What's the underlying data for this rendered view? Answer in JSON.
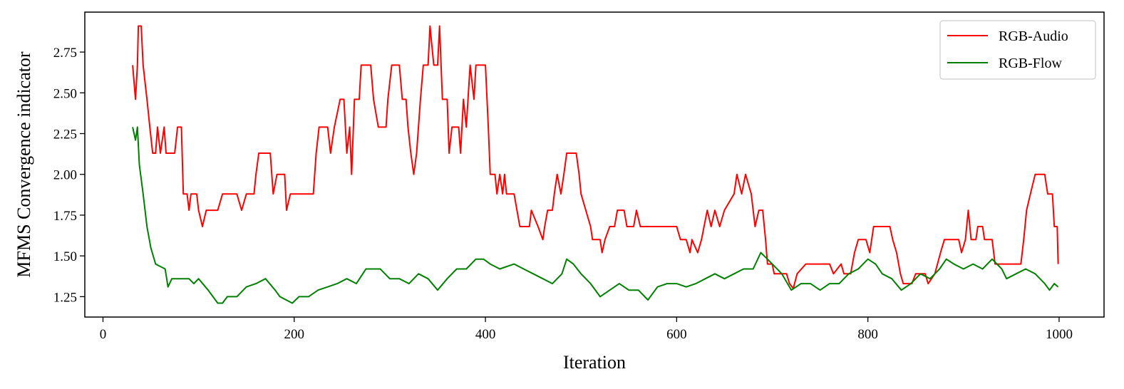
{
  "chart_data": {
    "type": "line",
    "x_label": "Iteration",
    "y_label": "MFMS Convergence indicator",
    "xlim": [
      -19,
      1047
    ],
    "ylim": [
      1.125,
      2.995
    ],
    "xticks": [
      0,
      200,
      400,
      600,
      800,
      1000
    ],
    "yticks": [
      1.25,
      {
        "value": 1.5,
        "label": "1.50"
      },
      1.75,
      {
        "value": 2.0,
        "label": "2.00"
      },
      2.25,
      {
        "value": 2.5,
        "label": "2.50"
      },
      2.75
    ],
    "legend": "upper right",
    "grid": false,
    "series": [
      {
        "name": "RGB-Audio",
        "color": "#ff0000",
        "x": [
          31,
          34,
          36,
          37,
          40,
          42,
          46,
          49,
          52,
          55,
          57,
          60,
          64,
          66,
          70,
          75,
          78,
          82,
          84,
          88,
          90,
          92,
          98,
          100,
          104,
          108,
          120,
          125,
          140,
          145,
          150,
          158,
          160,
          163,
          175,
          178,
          182,
          190,
          192,
          196,
          220,
          223,
          226,
          235,
          238,
          242,
          248,
          252,
          255,
          258,
          260,
          263,
          268,
          270,
          280,
          283,
          288,
          296,
          298,
          302,
          310,
          313,
          317,
          319,
          322,
          325,
          328,
          332,
          335,
          340,
          342,
          346,
          350,
          352,
          355,
          360,
          362,
          365,
          372,
          374,
          377,
          380,
          384,
          388,
          390,
          400,
          403,
          405,
          410,
          412,
          415,
          418,
          420,
          422,
          430,
          433,
          436,
          446,
          448,
          455,
          460,
          462,
          465,
          470,
          472,
          475,
          479,
          482,
          485,
          495,
          498,
          500,
          505,
          510,
          512,
          520,
          522,
          525,
          530,
          535,
          538,
          545,
          548,
          555,
          558,
          562,
          600,
          604,
          610,
          614,
          616,
          622,
          626,
          632,
          636,
          640,
          645,
          650,
          660,
          663,
          668,
          672,
          678,
          682,
          686,
          690,
          693,
          695,
          700,
          702,
          715,
          718,
          722,
          726,
          735,
          760,
          764,
          772,
          775,
          782,
          786,
          790,
          798,
          802,
          806,
          823,
          826,
          830,
          834,
          837,
          846,
          850,
          860,
          863,
          870,
          876,
          880,
          895,
          898,
          902,
          905,
          908,
          913,
          915,
          920,
          922,
          930,
          933,
          960,
          963,
          966,
          970,
          975,
          985,
          988,
          993,
          995,
          998,
          999
        ],
        "values": [
          2.67,
          2.46,
          2.67,
          2.91,
          2.91,
          2.67,
          2.46,
          2.29,
          2.13,
          2.13,
          2.29,
          2.13,
          2.29,
          2.13,
          2.13,
          2.13,
          2.29,
          2.29,
          1.88,
          1.88,
          1.78,
          1.88,
          1.88,
          1.78,
          1.68,
          1.78,
          1.78,
          1.88,
          1.88,
          1.78,
          1.88,
          1.88,
          2.0,
          2.13,
          2.13,
          1.88,
          2.0,
          2.0,
          1.78,
          1.88,
          1.88,
          2.13,
          2.29,
          2.29,
          2.13,
          2.29,
          2.46,
          2.46,
          2.13,
          2.29,
          2.0,
          2.46,
          2.46,
          2.67,
          2.67,
          2.46,
          2.29,
          2.29,
          2.46,
          2.67,
          2.67,
          2.46,
          2.46,
          2.29,
          2.13,
          2.0,
          2.13,
          2.46,
          2.67,
          2.67,
          2.91,
          2.67,
          2.67,
          2.91,
          2.46,
          2.46,
          2.13,
          2.29,
          2.29,
          2.13,
          2.46,
          2.29,
          2.67,
          2.46,
          2.67,
          2.67,
          2.29,
          2.0,
          2.0,
          1.88,
          2.0,
          1.88,
          2.0,
          1.88,
          1.88,
          1.78,
          1.68,
          1.68,
          1.78,
          1.68,
          1.6,
          1.68,
          1.78,
          1.78,
          1.88,
          2.0,
          1.88,
          2.0,
          2.13,
          2.13,
          2.0,
          1.88,
          1.78,
          1.68,
          1.6,
          1.6,
          1.52,
          1.6,
          1.68,
          1.68,
          1.78,
          1.78,
          1.68,
          1.68,
          1.78,
          1.68,
          1.68,
          1.6,
          1.6,
          1.52,
          1.6,
          1.52,
          1.6,
          1.78,
          1.68,
          1.78,
          1.68,
          1.78,
          1.88,
          2.0,
          1.88,
          2.0,
          1.88,
          1.68,
          1.78,
          1.78,
          1.6,
          1.45,
          1.45,
          1.39,
          1.39,
          1.33,
          1.3,
          1.39,
          1.45,
          1.45,
          1.39,
          1.45,
          1.39,
          1.39,
          1.52,
          1.6,
          1.6,
          1.52,
          1.68,
          1.68,
          1.6,
          1.52,
          1.39,
          1.33,
          1.33,
          1.39,
          1.39,
          1.33,
          1.39,
          1.52,
          1.6,
          1.6,
          1.52,
          1.6,
          1.78,
          1.6,
          1.6,
          1.68,
          1.68,
          1.6,
          1.6,
          1.45,
          1.45,
          1.6,
          1.78,
          1.88,
          2.0,
          2.0,
          1.88,
          1.88,
          1.68,
          1.68,
          1.45
        ]
      },
      {
        "name": "RGB-Flow",
        "color": "#008000",
        "x": [
          31,
          34,
          36,
          38,
          42,
          46,
          50,
          55,
          65,
          68,
          72,
          80,
          90,
          95,
          100,
          110,
          115,
          120,
          125,
          130,
          140,
          150,
          160,
          170,
          180,
          185,
          198,
          205,
          215,
          225,
          235,
          245,
          255,
          265,
          275,
          290,
          300,
          310,
          320,
          330,
          340,
          350,
          360,
          370,
          380,
          390,
          398,
          405,
          415,
          430,
          440,
          450,
          460,
          470,
          480,
          485,
          492,
          500,
          510,
          520,
          530,
          540,
          550,
          560,
          570,
          580,
          590,
          600,
          610,
          620,
          630,
          640,
          650,
          660,
          670,
          680,
          688,
          695,
          700,
          710,
          720,
          730,
          740,
          750,
          760,
          770,
          780,
          790,
          800,
          808,
          815,
          825,
          835,
          845,
          855,
          865,
          875,
          882,
          890,
          900,
          910,
          920,
          930,
          940,
          945,
          955,
          965,
          975,
          985,
          990,
          995,
          999
        ],
        "values": [
          2.29,
          2.21,
          2.29,
          2.06,
          1.88,
          1.68,
          1.55,
          1.45,
          1.42,
          1.31,
          1.36,
          1.36,
          1.36,
          1.33,
          1.36,
          1.29,
          1.25,
          1.21,
          1.21,
          1.25,
          1.25,
          1.31,
          1.33,
          1.36,
          1.29,
          1.25,
          1.21,
          1.25,
          1.25,
          1.29,
          1.31,
          1.33,
          1.36,
          1.33,
          1.42,
          1.42,
          1.36,
          1.36,
          1.33,
          1.39,
          1.36,
          1.29,
          1.36,
          1.42,
          1.42,
          1.48,
          1.48,
          1.45,
          1.42,
          1.45,
          1.42,
          1.39,
          1.36,
          1.33,
          1.39,
          1.48,
          1.45,
          1.39,
          1.33,
          1.25,
          1.29,
          1.33,
          1.29,
          1.29,
          1.23,
          1.31,
          1.33,
          1.33,
          1.31,
          1.33,
          1.36,
          1.39,
          1.36,
          1.39,
          1.42,
          1.42,
          1.52,
          1.48,
          1.45,
          1.39,
          1.29,
          1.33,
          1.33,
          1.29,
          1.33,
          1.33,
          1.39,
          1.42,
          1.48,
          1.45,
          1.39,
          1.36,
          1.29,
          1.33,
          1.39,
          1.36,
          1.42,
          1.48,
          1.45,
          1.42,
          1.45,
          1.42,
          1.48,
          1.42,
          1.36,
          1.39,
          1.42,
          1.39,
          1.33,
          1.29,
          1.33,
          1.31
        ]
      }
    ]
  }
}
